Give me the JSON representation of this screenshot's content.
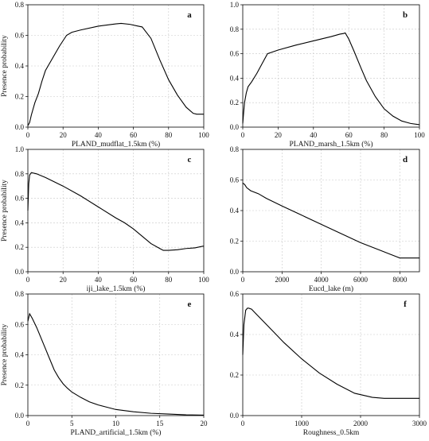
{
  "chart_data": [
    {
      "type": "line",
      "panel_label": "a",
      "xlabel": "PLAND_mudflat_1.5km (%)",
      "ylabel": "Presence probability",
      "xlim": [
        0,
        100
      ],
      "ylim": [
        0,
        0.8
      ],
      "xticks": [
        0,
        20,
        40,
        60,
        80,
        100
      ],
      "yticks": [
        0.0,
        0.2,
        0.4,
        0.6,
        0.8
      ],
      "grid": true,
      "x": [
        0,
        1,
        2,
        3,
        4,
        6,
        8,
        10,
        14,
        18,
        22,
        25,
        30,
        40,
        50,
        53,
        58,
        62,
        65,
        70,
        75,
        80,
        85,
        90,
        94,
        96,
        100
      ],
      "y": [
        0.01,
        0.03,
        0.08,
        0.12,
        0.16,
        0.22,
        0.3,
        0.37,
        0.45,
        0.53,
        0.6,
        0.62,
        0.635,
        0.66,
        0.675,
        0.678,
        0.672,
        0.662,
        0.655,
        0.58,
        0.44,
        0.31,
        0.21,
        0.13,
        0.09,
        0.085,
        0.085
      ]
    },
    {
      "type": "line",
      "panel_label": "b",
      "xlabel": "PLAND_marsh_1.5km (%)",
      "ylabel": "",
      "xlim": [
        0,
        100
      ],
      "ylim": [
        0,
        1.0
      ],
      "xticks": [
        0,
        20,
        40,
        60,
        80,
        100
      ],
      "yticks": [
        0.0,
        0.2,
        0.4,
        0.6,
        0.8,
        1.0
      ],
      "grid": true,
      "x": [
        0,
        0.5,
        1,
        2,
        3,
        5,
        8,
        11,
        14,
        20,
        30,
        40,
        50,
        55,
        57,
        58,
        60,
        63,
        67,
        70,
        75,
        80,
        85,
        90,
        95,
        100
      ],
      "y": [
        0.03,
        0.12,
        0.2,
        0.28,
        0.33,
        0.37,
        0.44,
        0.52,
        0.6,
        0.63,
        0.67,
        0.705,
        0.74,
        0.76,
        0.765,
        0.77,
        0.72,
        0.62,
        0.48,
        0.38,
        0.25,
        0.15,
        0.09,
        0.05,
        0.03,
        0.02
      ]
    },
    {
      "type": "line",
      "panel_label": "c",
      "xlabel": "iji_lake_1.5km (%)",
      "ylabel": "Presence probability",
      "xlim": [
        0,
        100
      ],
      "ylim": [
        0,
        1.0
      ],
      "xticks": [
        0,
        20,
        40,
        60,
        80,
        100
      ],
      "yticks": [
        0.0,
        0.2,
        0.4,
        0.6,
        0.8,
        1.0
      ],
      "grid": true,
      "x": [
        0,
        0.5,
        1,
        2,
        5,
        10,
        20,
        30,
        40,
        50,
        55,
        60,
        65,
        70,
        75,
        77,
        80,
        85,
        90,
        95,
        100
      ],
      "y": [
        0.5,
        0.72,
        0.79,
        0.81,
        0.8,
        0.77,
        0.7,
        0.62,
        0.53,
        0.44,
        0.4,
        0.35,
        0.29,
        0.23,
        0.19,
        0.175,
        0.175,
        0.18,
        0.19,
        0.195,
        0.21
      ]
    },
    {
      "type": "line",
      "panel_label": "d",
      "xlabel": "Eucd_lake (m)",
      "ylabel": "",
      "xlim": [
        0,
        9000
      ],
      "ylim": [
        0,
        0.8
      ],
      "xticks": [
        0,
        2000,
        4000,
        6000,
        8000
      ],
      "yticks": [
        0.0,
        0.2,
        0.4,
        0.6,
        0.8
      ],
      "grid": true,
      "x": [
        0,
        100,
        200,
        400,
        800,
        1200,
        2000,
        3000,
        4000,
        5000,
        6000,
        7000,
        7500,
        7800,
        8000,
        8500,
        9000
      ],
      "y": [
        0.58,
        0.57,
        0.55,
        0.53,
        0.51,
        0.48,
        0.43,
        0.37,
        0.31,
        0.25,
        0.19,
        0.14,
        0.115,
        0.1,
        0.09,
        0.09,
        0.09
      ]
    },
    {
      "type": "line",
      "panel_label": "e",
      "xlabel": "PLAND_artificial_1.5km (%)",
      "ylabel": "Presence probability",
      "xlim": [
        0,
        20
      ],
      "ylim": [
        0,
        0.8
      ],
      "xticks": [
        0,
        5,
        10,
        15,
        20
      ],
      "yticks": [
        0.0,
        0.2,
        0.4,
        0.6,
        0.8
      ],
      "grid": true,
      "x": [
        0,
        0.2,
        0.5,
        1,
        1.5,
        2,
        2.5,
        3,
        3.5,
        4,
        4.5,
        5,
        6,
        7,
        8,
        9,
        10,
        12,
        14,
        16,
        18,
        20
      ],
      "y": [
        0.62,
        0.67,
        0.64,
        0.58,
        0.51,
        0.44,
        0.37,
        0.3,
        0.25,
        0.21,
        0.18,
        0.155,
        0.12,
        0.09,
        0.07,
        0.055,
        0.04,
        0.025,
        0.015,
        0.01,
        0.005,
        0.003
      ]
    },
    {
      "type": "line",
      "panel_label": "f",
      "xlabel": "Roughness_0.5km",
      "ylabel": "",
      "xlim": [
        0,
        3000
      ],
      "ylim": [
        0,
        0.6
      ],
      "xticks": [
        0,
        1000,
        2000,
        3000
      ],
      "yticks": [
        0.0,
        0.2,
        0.4,
        0.6
      ],
      "grid": true,
      "x": [
        0,
        20,
        50,
        80,
        100,
        150,
        200,
        300,
        500,
        700,
        1000,
        1300,
        1600,
        1900,
        2200,
        2400,
        2600,
        3000
      ],
      "y": [
        0.3,
        0.45,
        0.52,
        0.53,
        0.53,
        0.525,
        0.51,
        0.48,
        0.42,
        0.36,
        0.28,
        0.21,
        0.155,
        0.11,
        0.09,
        0.085,
        0.085,
        0.085
      ]
    }
  ]
}
